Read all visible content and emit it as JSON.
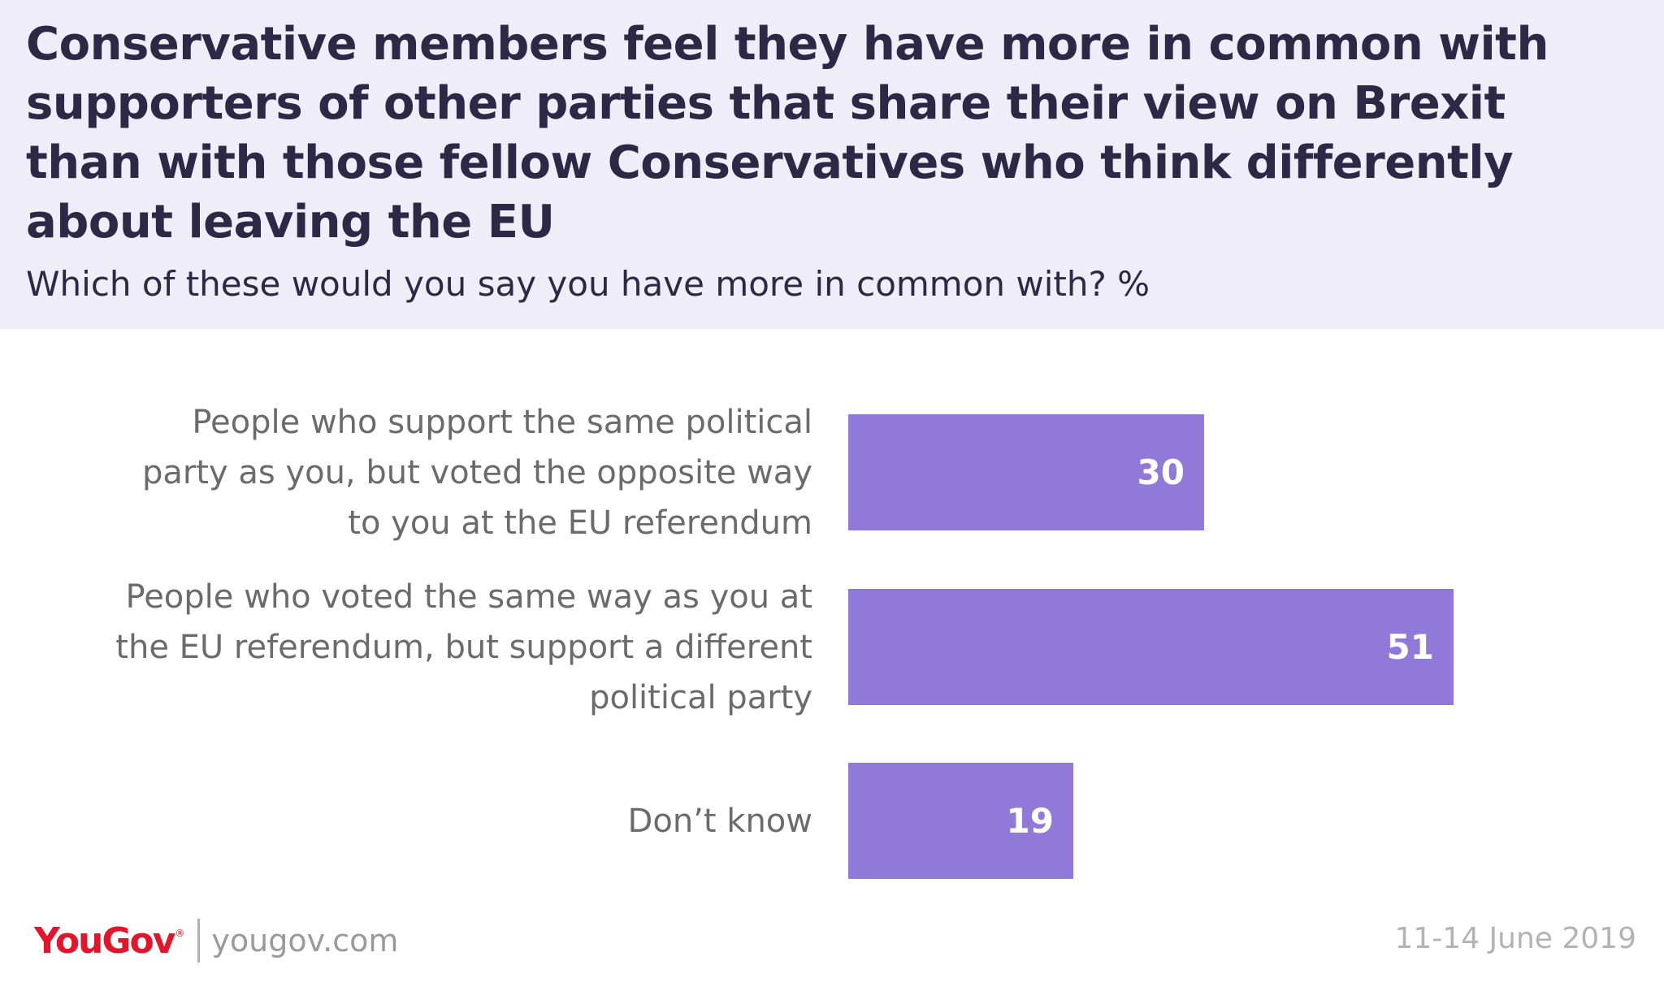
{
  "header": {
    "title": "Conservative members feel they have more in common with supporters of other parties that share their view on Brexit than with those fellow Conservatives who think differently about leaving the EU",
    "subtitle": "Which of these would you say you have more in common with? %"
  },
  "chart_data": {
    "type": "bar",
    "orientation": "horizontal",
    "categories": [
      "People who support the same political party as you, but voted the opposite way to you at the EU referendum",
      "People who voted the same way as you at the EU referendum, but support a different political party",
      "Don’t know"
    ],
    "values": [
      30,
      51,
      19
    ],
    "value_labels": [
      "30",
      "51",
      "19"
    ],
    "xlim": [
      0,
      100
    ],
    "grid": false,
    "legend": "none",
    "bar_color": "#9079d9"
  },
  "footer": {
    "logo": "YouGov",
    "url": "yougov.com",
    "date": "11-14 June 2019"
  },
  "colors": {
    "header_bg": "#efedf7",
    "title_text": "#2d2846",
    "label_text": "#6b6b6b",
    "logo_red": "#e4152b"
  }
}
